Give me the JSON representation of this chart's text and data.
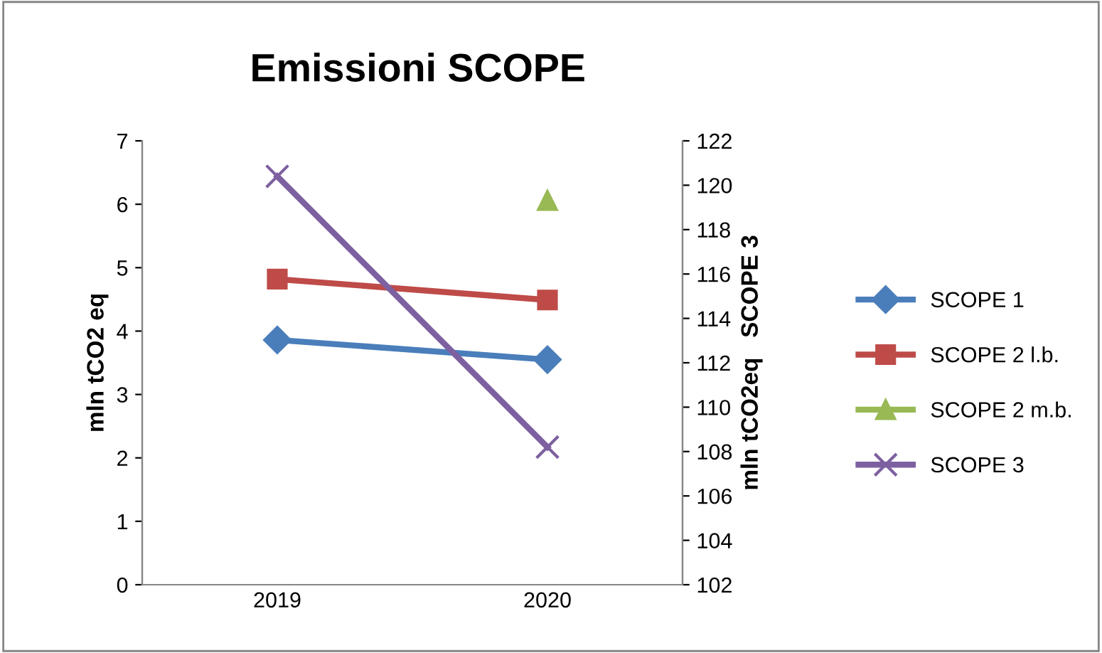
{
  "chart_data": {
    "type": "line",
    "title": "Emissioni SCOPE",
    "ylabel": "mln tCO2 eq",
    "y2label": "mln tCO2eq   SCOPE 3",
    "categories": [
      "2019",
      "2020"
    ],
    "series": [
      {
        "name": "SCOPE 1",
        "color": "#4a7ebb",
        "marker": "diamond",
        "values": [
          3.86,
          3.55
        ]
      },
      {
        "name": "SCOPE 2 l.b.",
        "color": "#be4b48",
        "marker": "square",
        "values": [
          4.82,
          4.49
        ]
      },
      {
        "name": "SCOPE 2 m.b.",
        "color": "#98b954",
        "marker": "triangle",
        "values": [
          null,
          6.06
        ]
      },
      {
        "name": "SCOPE 3",
        "color": "#7d60a0",
        "marker": "cross",
        "axis": "y2",
        "values": [
          120.4,
          108.2
        ]
      }
    ],
    "ylim": [
      0,
      7
    ],
    "yticks": [
      0,
      1,
      2,
      3,
      4,
      5,
      6,
      7
    ],
    "y2lim": [
      102,
      122
    ],
    "y2ticks": [
      102,
      104,
      106,
      108,
      110,
      112,
      114,
      116,
      118,
      120,
      122
    ],
    "legend": "right",
    "grid": false
  }
}
